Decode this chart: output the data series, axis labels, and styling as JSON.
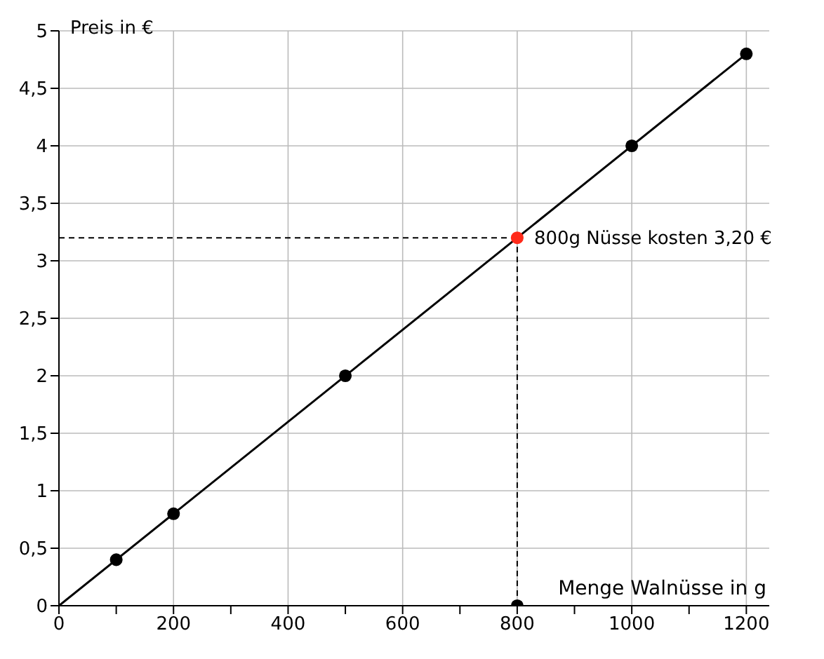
{
  "chart_data": {
    "type": "line",
    "xlabel": "Menge Walnüsse in g",
    "ylabel": "Preis in €",
    "series": [
      {
        "x": [
          0,
          1200
        ],
        "values": [
          0,
          4.8
        ],
        "color": "#000000",
        "marker": "none"
      },
      {
        "type": "scatter",
        "x": [
          100,
          200,
          500,
          800,
          1000,
          1200
        ],
        "values": [
          0.4,
          0.8,
          2,
          0,
          4,
          4.8
        ],
        "color": "#000000"
      },
      {
        "type": "scatter",
        "x": [
          800
        ],
        "values": [
          3.2
        ],
        "color": "#ff2a1a"
      }
    ],
    "xlim": [
      0,
      1240
    ],
    "xticks": [
      0,
      {
        "value": 100,
        "label": null
      },
      200,
      {
        "value": 300,
        "label": null
      },
      400,
      {
        "value": 500,
        "label": null
      },
      600,
      {
        "value": 700,
        "label": null
      },
      800,
      {
        "value": 900,
        "label": null
      },
      1000,
      {
        "value": 1100,
        "label": null
      },
      1200
    ],
    "ylim": [
      0,
      5
    ],
    "yticks": [
      0,
      {
        "value": 0.5,
        "label": "0,5"
      },
      1,
      {
        "value": 1.5,
        "label": "1,5"
      },
      2,
      {
        "value": 2.5,
        "label": "2,5"
      },
      3,
      {
        "value": 3.5,
        "label": "3,5"
      },
      4,
      {
        "value": 4.5,
        "label": "4,5"
      },
      5
    ],
    "ref_lines": [
      {
        "axis": "y",
        "value": 3.2,
        "line_style": "dashed",
        "color": "#000000"
      },
      {
        "axis": "x",
        "value": 800,
        "line_style": "dashed",
        "color": "#000000"
      }
    ],
    "annotations": [
      {
        "text": "800g Nüsse kosten 3,20 €",
        "x": 800,
        "y": 3.2
      }
    ],
    "grid": true,
    "marker": "circle"
  }
}
